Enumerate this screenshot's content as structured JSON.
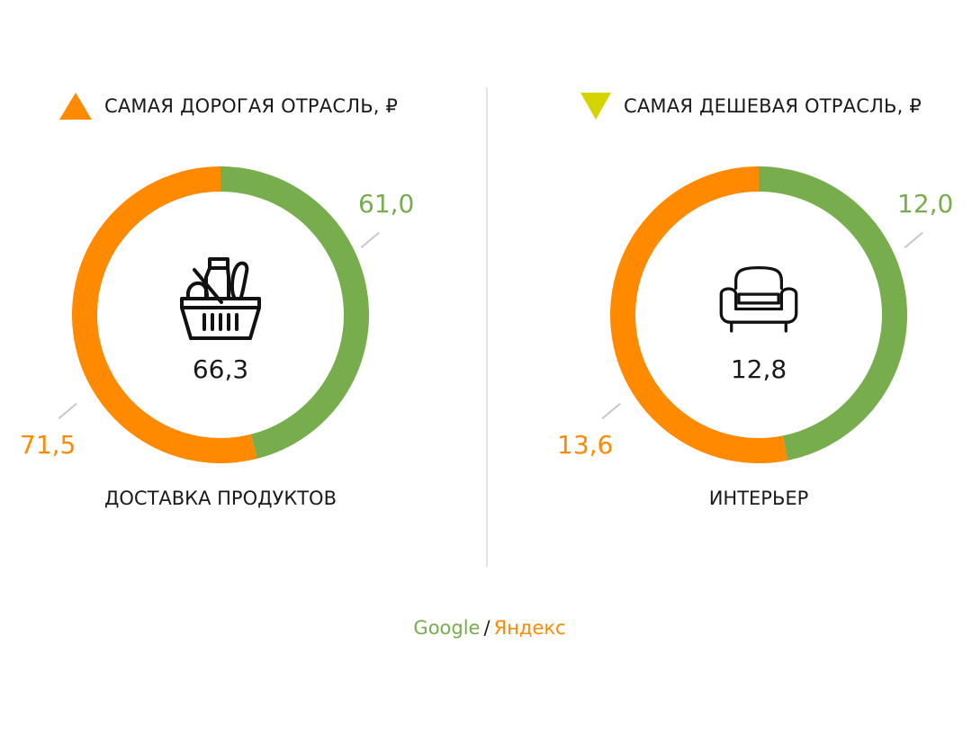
{
  "colors": {
    "google": "#77ad4c",
    "yandex": "#ff8a00",
    "cheap_marker": "#d6d400",
    "expensive_marker": "#ff8a00"
  },
  "panels": [
    {
      "title": "САМАЯ ДОРОГАЯ ОТРАСЛЬ, ₽",
      "marker_icon": "triangle-up-icon",
      "category": "ДОСТАВКА ПРОДУКТОВ",
      "icon": "grocery-basket-icon",
      "average": "66,3",
      "google_label": "61,0",
      "yandex_label": "71,5"
    },
    {
      "title": "САМАЯ ДЕШЕВАЯ ОТРАСЛЬ, ₽",
      "marker_icon": "triangle-down-icon",
      "category": "ИНТЕРЬЕР",
      "icon": "armchair-icon",
      "average": "12,8",
      "google_label": "12,0",
      "yandex_label": "13,6"
    }
  ],
  "legend": {
    "google": "Google",
    "separator": "/",
    "yandex": "Яндекс"
  },
  "chart_data": [
    {
      "type": "pie",
      "categories": [
        "Google",
        "Яндекс"
      ],
      "values": [
        61.0,
        71.5
      ],
      "center_value": 66.3
    },
    {
      "type": "pie",
      "categories": [
        "Google",
        "Яндекс"
      ],
      "values": [
        12.0,
        13.6
      ],
      "center_value": 12.8
    }
  ]
}
